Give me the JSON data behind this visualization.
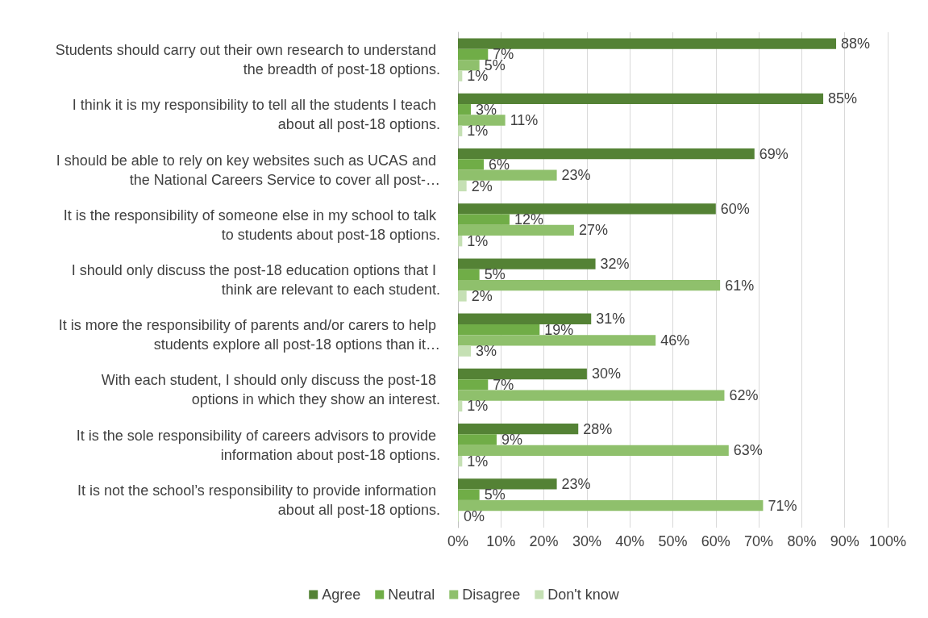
{
  "chart_data": {
    "type": "bar",
    "orientation": "horizontal",
    "categories": [
      "Students should carry out their own research to understand the breadth of post-18 options.",
      "I think it is my responsibility to tell all the students I teach about all post-18 options.",
      "I should be able to rely on key websites such as UCAS and the National Careers Service to cover all post-…",
      "It is the responsibility of someone else in my school to talk to students about post-18 options.",
      "I should only discuss the post-18 education options that I think are relevant to each student.",
      "It is more the responsibility of parents and/or carers to help students explore all post-18 options than it…",
      "With each student, I should only discuss the post-18 options in which they show an interest.",
      "It is the sole responsibility of careers advisors to provide information about post-18 options.",
      "It is not the school’s responsibility to provide information about all post-18 options."
    ],
    "series": [
      {
        "name": "Agree",
        "color": "#548235",
        "values": [
          88,
          85,
          69,
          60,
          32,
          31,
          30,
          28,
          23
        ],
        "value_labels": [
          "88%",
          "85%",
          "69%",
          "60%",
          "32%",
          "31%",
          "30%",
          "28%",
          "23%"
        ]
      },
      {
        "name": "Neutral",
        "color": "#70ad47",
        "values": [
          7,
          3,
          6,
          12,
          5,
          19,
          7,
          9,
          5
        ],
        "value_labels": [
          "7%",
          "3%",
          "6%",
          "12%",
          "5%",
          "19%",
          "7%",
          "9%",
          "5%"
        ]
      },
      {
        "name": "Disagree",
        "color": "#8fc06c",
        "values": [
          5,
          11,
          23,
          27,
          61,
          46,
          62,
          63,
          71
        ],
        "value_labels": [
          "5%",
          "11%",
          "23%",
          "27%",
          "61%",
          "46%",
          "62%",
          "63%",
          "71%"
        ]
      },
      {
        "name": "Don't know",
        "color": "#c5e0b4",
        "values": [
          1,
          1,
          2,
          1,
          2,
          3,
          1,
          1,
          0
        ],
        "value_labels": [
          "1%",
          "1%",
          "2%",
          "1%",
          "2%",
          "3%",
          "1%",
          "1%",
          "0%"
        ]
      }
    ],
    "xlim": [
      0,
      100
    ],
    "xticks": [
      {
        "value": 0,
        "label": "0%"
      },
      {
        "value": 10,
        "label": "10%"
      },
      {
        "value": 20,
        "label": "20%"
      },
      {
        "value": 30,
        "label": "30%"
      },
      {
        "value": 40,
        "label": "40%"
      },
      {
        "value": 50,
        "label": "50%"
      },
      {
        "value": 60,
        "label": "60%"
      },
      {
        "value": 70,
        "label": "70%"
      },
      {
        "value": 80,
        "label": "80%"
      },
      {
        "value": 90,
        "label": "90%"
      },
      {
        "value": 100,
        "label": "100%"
      }
    ],
    "grid": "x",
    "legend": "bottom"
  }
}
